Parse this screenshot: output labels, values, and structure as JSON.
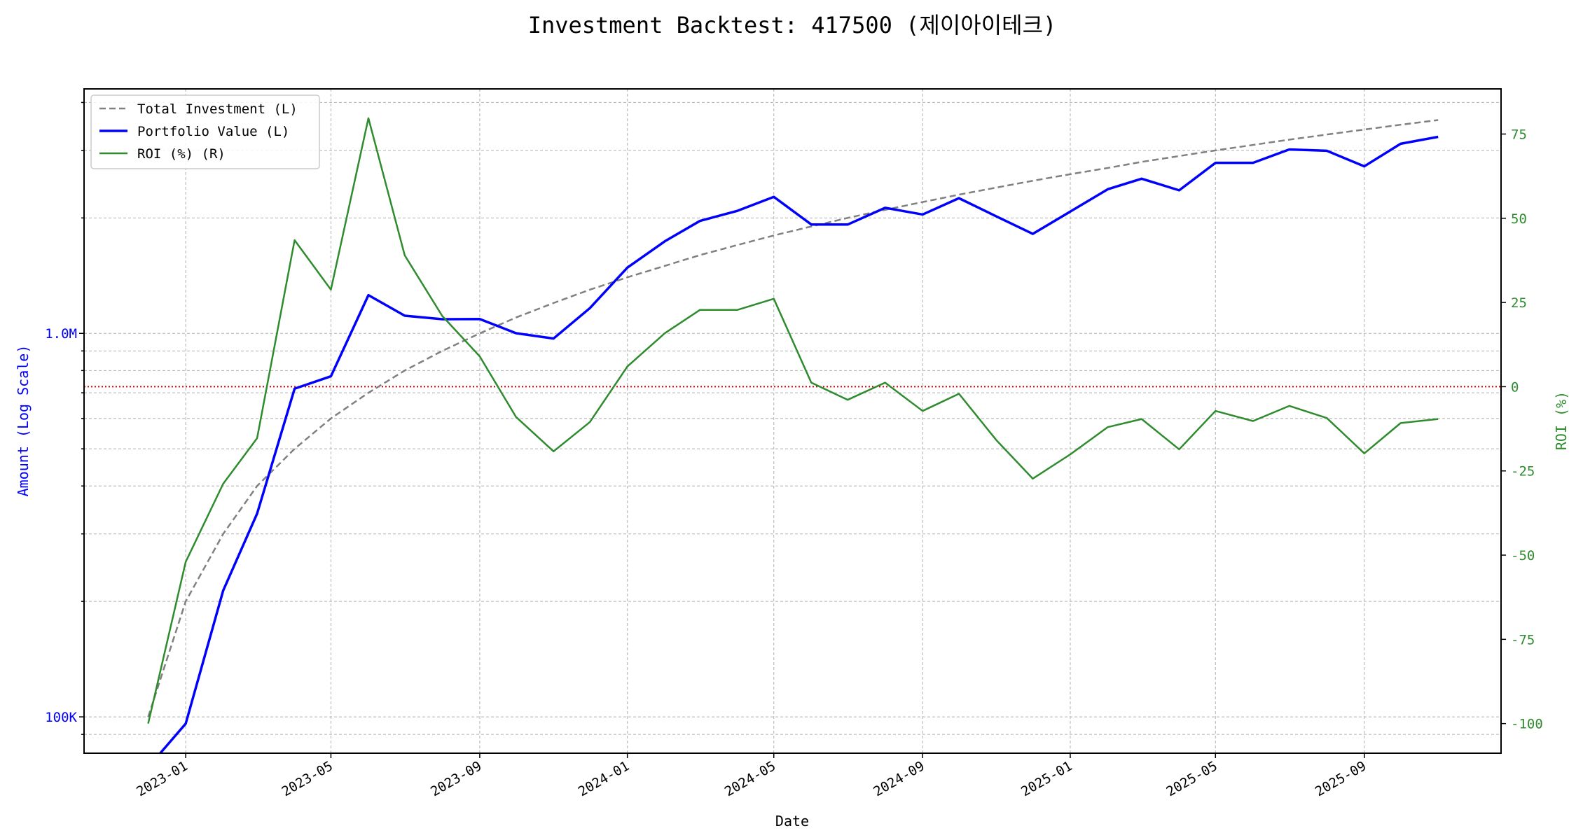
{
  "chart_data": {
    "type": "line",
    "title": "Investment Backtest: 417500 (제이아이테크)",
    "xlabel": "Date",
    "ylabel_left": "Amount (Log Scale)",
    "ylabel_right": "ROI (%)",
    "yscale_left": "log",
    "ylim_left": [
      80400,
      4340000
    ],
    "ylim_right": [
      -108.8,
      88.4
    ],
    "xlim": [
      "2022-10-09",
      "2025-12-23"
    ],
    "grid": true,
    "legend_position": "top-left",
    "x_ticks": [
      "2023-01",
      "2023-05",
      "2023-09",
      "2024-01",
      "2024-05",
      "2024-09",
      "2025-01",
      "2025-05",
      "2025-09"
    ],
    "y_ticks_left": [
      {
        "value": 100000,
        "label": "100K"
      },
      {
        "value": 1000000,
        "label": "1.0M"
      }
    ],
    "y_ticks_right": [
      75,
      50,
      25,
      0,
      -25,
      -50,
      -75,
      -100
    ],
    "reference_line": {
      "axis": "right",
      "value": 0,
      "color": "#cc0000",
      "style": "dotted"
    },
    "x": [
      "2022-12-01",
      "2023-01-01",
      "2023-02-01",
      "2023-03-01",
      "2023-04-01",
      "2023-05-01",
      "2023-06-01",
      "2023-07-01",
      "2023-08-01",
      "2023-09-01",
      "2023-10-01",
      "2023-11-01",
      "2023-12-01",
      "2024-01-01",
      "2024-02-01",
      "2024-03-01",
      "2024-04-01",
      "2024-05-01",
      "2024-06-01",
      "2024-07-01",
      "2024-08-01",
      "2024-09-01",
      "2024-10-01",
      "2024-11-01",
      "2024-12-01",
      "2025-01-01",
      "2025-02-01",
      "2025-03-01",
      "2025-04-01",
      "2025-05-01",
      "2025-06-01",
      "2025-07-01",
      "2025-08-01",
      "2025-09-01",
      "2025-10-01",
      "2025-11-01"
    ],
    "series": [
      {
        "name": "Total Investment (L)",
        "axis": "left",
        "color": "#808080",
        "style": "dashed",
        "values": [
          100000,
          200000,
          300000,
          400000,
          500000,
          600000,
          700000,
          800000,
          900000,
          1000000,
          1100000,
          1200000,
          1300000,
          1400000,
          1500000,
          1600000,
          1700000,
          1800000,
          1900000,
          2000000,
          2100000,
          2200000,
          2300000,
          2400000,
          2500000,
          2600000,
          2700000,
          2800000,
          2900000,
          3000000,
          3100000,
          3200000,
          3300000,
          3400000,
          3500000,
          3600000
        ]
      },
      {
        "name": "Portfolio Value (L)",
        "axis": "left",
        "color": "#0000ff",
        "style": "solid",
        "values": [
          0,
          96000,
          213600,
          338800,
          717500,
          772800,
          1257900,
          1112000,
          1089000,
          1090000,
          1001000,
          969600,
          1163500,
          1484000,
          1738500,
          1964800,
          2087600,
          2269800,
          1922800,
          1922000,
          2125200,
          2041600,
          2251700,
          2018400,
          1817500,
          2077400,
          2376000,
          2531200,
          2360600,
          2784000,
          2783800,
          3017600,
          2993100,
          2726800,
          3122000,
          3254400
        ]
      },
      {
        "name": "ROI (%) (R)",
        "axis": "right",
        "color": "#2e8b2e",
        "style": "solid",
        "values": [
          -100,
          -52,
          -28.8,
          -15.3,
          43.5,
          28.8,
          79.7,
          39,
          21,
          9,
          -9,
          -19.2,
          -10.5,
          6,
          15.9,
          22.8,
          22.8,
          26.1,
          1.2,
          -3.9,
          1.2,
          -7.2,
          -2.1,
          -15.9,
          -27.3,
          -20.1,
          -12,
          -9.6,
          -18.6,
          -7.2,
          -10.2,
          -5.7,
          -9.3,
          -19.8,
          -10.8,
          -9.6
        ]
      }
    ]
  }
}
